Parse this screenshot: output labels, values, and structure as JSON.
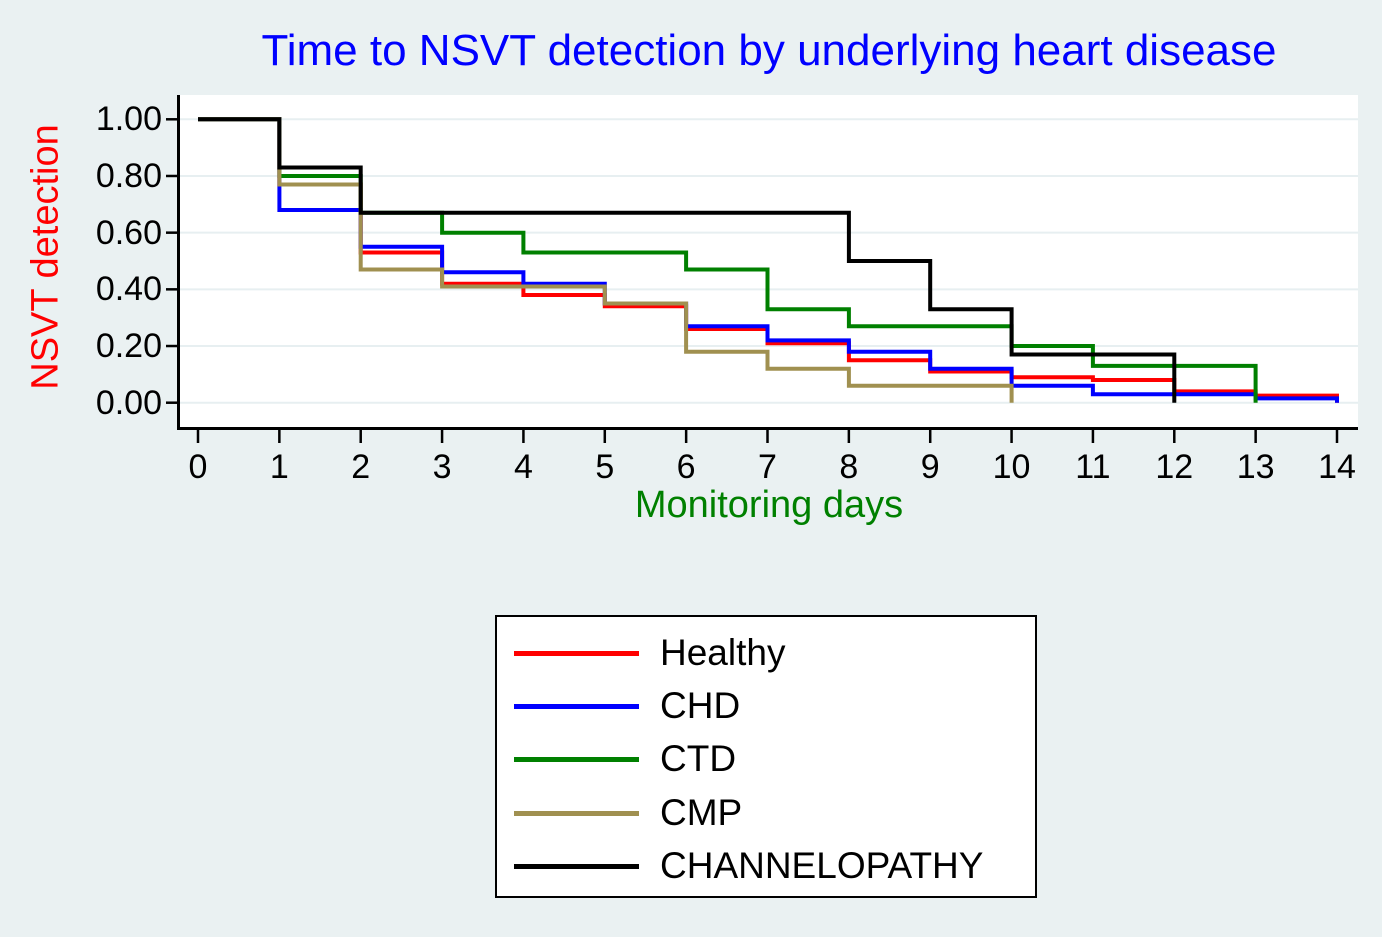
{
  "figure": {
    "background_color": "#eaf1f2",
    "plot_background_color": "#ffffff",
    "grid_color": "#e7eff1",
    "axis_color": "#000000",
    "tick_label_color": "#000000"
  },
  "chart_data": {
    "type": "line",
    "subtype": "kaplan-meier-step",
    "title": "Time to NSVT detection by underlying heart disease",
    "title_color": "#0000ff",
    "xlabel": "Monitoring days",
    "xlabel_color": "#008000",
    "ylabel": "NSVT detection",
    "ylabel_color": "#ff0000",
    "xlim": [
      0,
      14
    ],
    "ylim": [
      0,
      1.0
    ],
    "x_ticks": [
      0,
      1,
      2,
      3,
      4,
      5,
      6,
      7,
      8,
      9,
      10,
      11,
      12,
      13,
      14
    ],
    "x_tick_labels": [
      "0",
      "1",
      "2",
      "3",
      "4",
      "5",
      "6",
      "7",
      "8",
      "9",
      "10",
      "11",
      "12",
      "13",
      "14"
    ],
    "y_ticks": [
      0.0,
      0.2,
      0.4,
      0.6,
      0.8,
      1.0
    ],
    "y_tick_labels": [
      "0.00",
      "0.20",
      "0.40",
      "0.60",
      "0.80",
      "1.00"
    ],
    "grid": "horizontal",
    "step_mode": "post",
    "legend_position": "below-center",
    "series": [
      {
        "name": "Healthy",
        "color": "#ff0000",
        "points": [
          [
            0,
            1.0
          ],
          [
            1,
            0.77
          ],
          [
            2,
            0.53
          ],
          [
            3,
            0.42
          ],
          [
            4,
            0.38
          ],
          [
            5,
            0.34
          ],
          [
            6,
            0.26
          ],
          [
            7,
            0.21
          ],
          [
            8,
            0.15
          ],
          [
            9,
            0.11
          ],
          [
            10,
            0.09
          ],
          [
            11,
            0.08
          ],
          [
            12,
            0.04
          ],
          [
            13,
            0.025
          ],
          [
            14,
            0.0
          ]
        ]
      },
      {
        "name": "CHD",
        "color": "#0000ff",
        "points": [
          [
            0,
            1.0
          ],
          [
            1,
            0.68
          ],
          [
            2,
            0.55
          ],
          [
            3,
            0.46
          ],
          [
            4,
            0.42
          ],
          [
            5,
            0.35
          ],
          [
            6,
            0.27
          ],
          [
            7,
            0.22
          ],
          [
            8,
            0.18
          ],
          [
            9,
            0.12
          ],
          [
            10,
            0.06
          ],
          [
            11,
            0.03
          ],
          [
            12,
            0.03
          ],
          [
            13,
            0.015
          ],
          [
            14,
            0.0
          ]
        ]
      },
      {
        "name": "CTD",
        "color": "#008000",
        "points": [
          [
            0,
            1.0
          ],
          [
            1,
            0.8
          ],
          [
            2,
            0.67
          ],
          [
            3,
            0.6
          ],
          [
            4,
            0.53
          ],
          [
            5,
            0.53
          ],
          [
            6,
            0.47
          ],
          [
            7,
            0.33
          ],
          [
            8,
            0.27
          ],
          [
            9,
            0.27
          ],
          [
            10,
            0.2
          ],
          [
            11,
            0.13
          ],
          [
            12,
            0.13
          ],
          [
            13,
            0.0
          ]
        ]
      },
      {
        "name": "CMP",
        "color": "#a09050",
        "points": [
          [
            0,
            1.0
          ],
          [
            1,
            0.77
          ],
          [
            2,
            0.47
          ],
          [
            3,
            0.41
          ],
          [
            4,
            0.41
          ],
          [
            5,
            0.35
          ],
          [
            6,
            0.18
          ],
          [
            7,
            0.12
          ],
          [
            8,
            0.06
          ],
          [
            9,
            0.06
          ],
          [
            10,
            0.0
          ]
        ]
      },
      {
        "name": "CHANNELOPATHY",
        "color": "#000000",
        "points": [
          [
            0,
            1.0
          ],
          [
            1,
            0.83
          ],
          [
            2,
            0.67
          ],
          [
            3,
            0.67
          ],
          [
            4,
            0.67
          ],
          [
            5,
            0.67
          ],
          [
            6,
            0.67
          ],
          [
            7,
            0.67
          ],
          [
            8,
            0.5
          ],
          [
            9,
            0.33
          ],
          [
            10,
            0.17
          ],
          [
            11,
            0.17
          ],
          [
            12,
            0.0
          ]
        ]
      }
    ]
  }
}
